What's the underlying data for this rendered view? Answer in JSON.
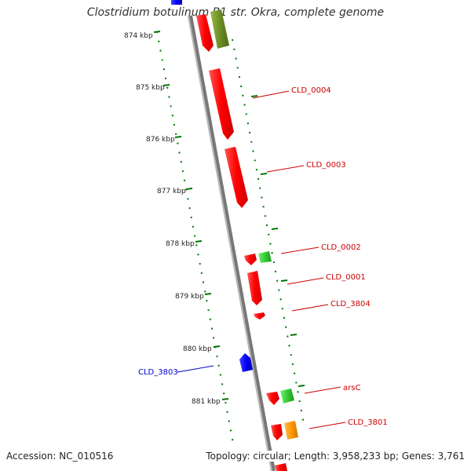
{
  "header": {
    "title": "Clostridium botulinum B1 str. Okra, complete genome"
  },
  "footer": {
    "accession": "Accession: NC_010516",
    "topology": "Topology: circular; Length: 3,958,233 bp; Genes: 3,761"
  },
  "axis_ticks": [
    "874 kbp",
    "875 kbp",
    "876 kbp",
    "877 kbp",
    "878 kbp",
    "879 kbp",
    "880 kbp",
    "881 kbp"
  ],
  "gene_labels": [
    {
      "name": "CLD_0004",
      "color": "#cc0000"
    },
    {
      "name": "CLD_0003",
      "color": "#cc0000"
    },
    {
      "name": "CLD_0002",
      "color": "#cc0000"
    },
    {
      "name": "CLD_0001",
      "color": "#cc0000"
    },
    {
      "name": "CLD_3804",
      "color": "#cc0000"
    },
    {
      "name": "CLD_3803",
      "color": "#0000cc"
    },
    {
      "name": "arsC",
      "color": "#cc0000"
    },
    {
      "name": "CLD_3801",
      "color": "#cc0000"
    }
  ],
  "colors": {
    "cds_red": "#ff0000",
    "cds_green": "#33cc33",
    "cds_olive": "#6b8e23",
    "cds_blue": "#0000ff",
    "cds_orange": "#ff9900",
    "backbone": "#888888",
    "ring_dots": "#007700"
  }
}
